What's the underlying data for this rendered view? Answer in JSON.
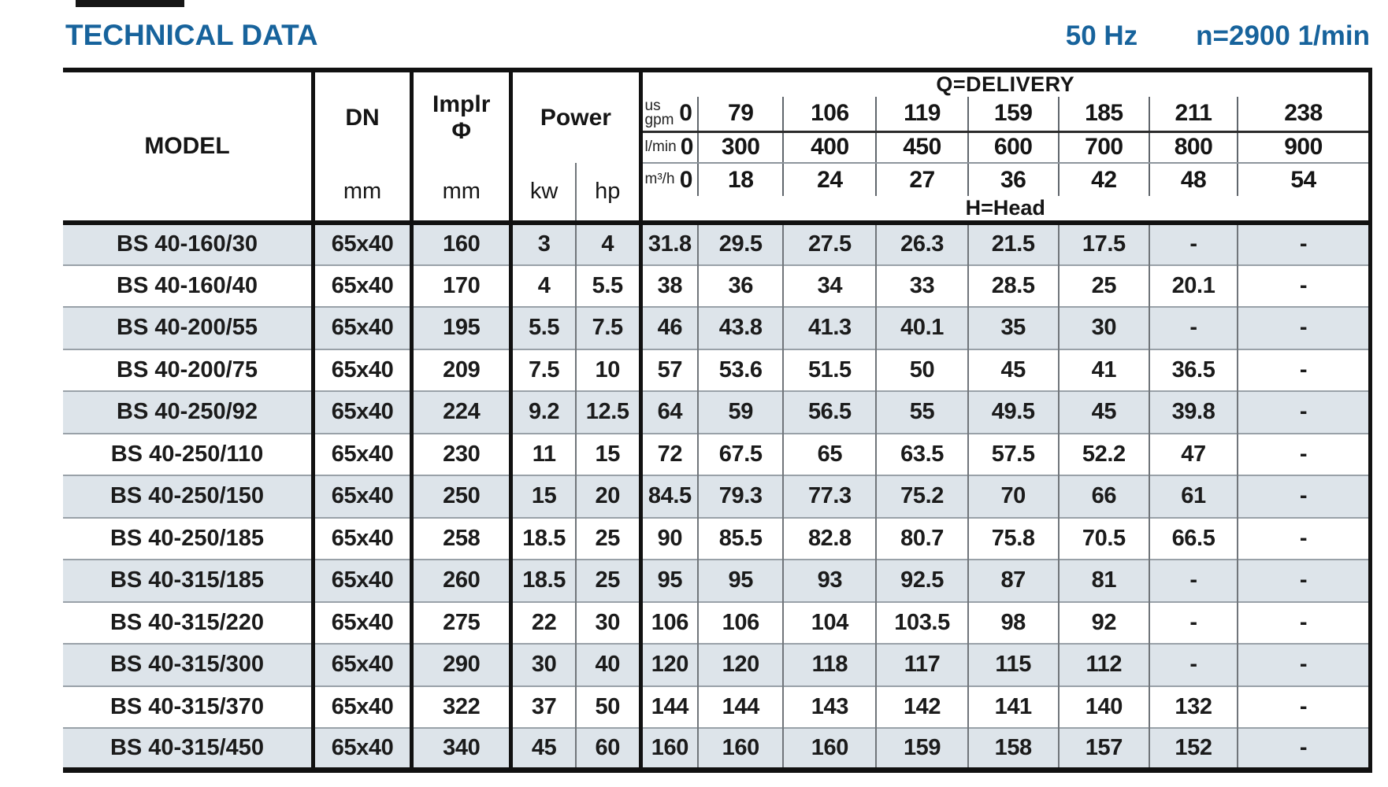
{
  "page": {
    "title": "TECHNICAL DATA",
    "frequency": "50 Hz",
    "speed": "n=2900 1/min"
  },
  "colors": {
    "accent": "#17639c",
    "row_shade": "#dde4ea",
    "border_black": "#111111",
    "thin_line": "#99a1a8"
  },
  "table": {
    "headers": {
      "model": "MODEL",
      "dn": "DN",
      "implr_line1": "Implr",
      "implr_line2": "Φ",
      "power": "Power",
      "delivery": "Q=DELIVERY",
      "head": "H=Head",
      "mm_dn": "mm",
      "mm_implr": "mm",
      "kw": "kw",
      "hp": "hp",
      "unit_us": "us",
      "unit_gpm": "gpm",
      "unit_lmin": "l/min",
      "unit_m3h": "m³/h"
    },
    "delivery_rows": {
      "gpm": [
        "0",
        "79",
        "106",
        "119",
        "159",
        "185",
        "211",
        "238"
      ],
      "lmin": [
        "0",
        "300",
        "400",
        "450",
        "600",
        "700",
        "800",
        "900"
      ],
      "m3h": [
        "0",
        "18",
        "24",
        "27",
        "36",
        "42",
        "48",
        "54"
      ]
    },
    "rows": [
      {
        "model": "BS 40-160/30",
        "dn": "65x40",
        "implr": "160",
        "kw": "3",
        "hp": "4",
        "head": [
          "31.8",
          "29.5",
          "27.5",
          "26.3",
          "21.5",
          "17.5",
          "-",
          "-"
        ]
      },
      {
        "model": "BS 40-160/40",
        "dn": "65x40",
        "implr": "170",
        "kw": "4",
        "hp": "5.5",
        "head": [
          "38",
          "36",
          "34",
          "33",
          "28.5",
          "25",
          "20.1",
          "-"
        ]
      },
      {
        "model": "BS 40-200/55",
        "dn": "65x40",
        "implr": "195",
        "kw": "5.5",
        "hp": "7.5",
        "head": [
          "46",
          "43.8",
          "41.3",
          "40.1",
          "35",
          "30",
          "-",
          "-"
        ]
      },
      {
        "model": "BS 40-200/75",
        "dn": "65x40",
        "implr": "209",
        "kw": "7.5",
        "hp": "10",
        "head": [
          "57",
          "53.6",
          "51.5",
          "50",
          "45",
          "41",
          "36.5",
          "-"
        ]
      },
      {
        "model": "BS 40-250/92",
        "dn": "65x40",
        "implr": "224",
        "kw": "9.2",
        "hp": "12.5",
        "head": [
          "64",
          "59",
          "56.5",
          "55",
          "49.5",
          "45",
          "39.8",
          "-"
        ]
      },
      {
        "model": "BS 40-250/110",
        "dn": "65x40",
        "implr": "230",
        "kw": "11",
        "hp": "15",
        "head": [
          "72",
          "67.5",
          "65",
          "63.5",
          "57.5",
          "52.2",
          "47",
          "-"
        ]
      },
      {
        "model": "BS 40-250/150",
        "dn": "65x40",
        "implr": "250",
        "kw": "15",
        "hp": "20",
        "head": [
          "84.5",
          "79.3",
          "77.3",
          "75.2",
          "70",
          "66",
          "61",
          "-"
        ]
      },
      {
        "model": "BS 40-250/185",
        "dn": "65x40",
        "implr": "258",
        "kw": "18.5",
        "hp": "25",
        "head": [
          "90",
          "85.5",
          "82.8",
          "80.7",
          "75.8",
          "70.5",
          "66.5",
          "-"
        ]
      },
      {
        "model": "BS 40-315/185",
        "dn": "65x40",
        "implr": "260",
        "kw": "18.5",
        "hp": "25",
        "head": [
          "95",
          "95",
          "93",
          "92.5",
          "87",
          "81",
          "-",
          "-"
        ]
      },
      {
        "model": "BS 40-315/220",
        "dn": "65x40",
        "implr": "275",
        "kw": "22",
        "hp": "30",
        "head": [
          "106",
          "106",
          "104",
          "103.5",
          "98",
          "92",
          "-",
          "-"
        ]
      },
      {
        "model": "BS 40-315/300",
        "dn": "65x40",
        "implr": "290",
        "kw": "30",
        "hp": "40",
        "head": [
          "120",
          "120",
          "118",
          "117",
          "115",
          "112",
          "-",
          "-"
        ]
      },
      {
        "model": "BS 40-315/370",
        "dn": "65x40",
        "implr": "322",
        "kw": "37",
        "hp": "50",
        "head": [
          "144",
          "144",
          "143",
          "142",
          "141",
          "140",
          "132",
          "-"
        ]
      },
      {
        "model": "BS 40-315/450",
        "dn": "65x40",
        "implr": "340",
        "kw": "45",
        "hp": "60",
        "head": [
          "160",
          "160",
          "160",
          "159",
          "158",
          "157",
          "152",
          "-"
        ]
      }
    ]
  }
}
